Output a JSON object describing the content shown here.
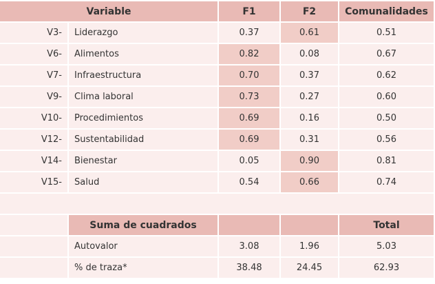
{
  "table": {
    "header": [
      "Variable",
      "F1",
      "F2",
      "Comunalidades"
    ],
    "rows": [
      [
        "V3-",
        "Liderazgo",
        "0.37",
        "0.61",
        "0.51"
      ],
      [
        "V6-",
        "Alimentos",
        "0.82",
        "0.08",
        "0.67"
      ],
      [
        "V7-",
        "Infraestructura",
        "0.70",
        "0.37",
        "0.62"
      ],
      [
        "V9-",
        "Clima laboral",
        "0.73",
        "0.27",
        "0.60"
      ],
      [
        "V10-",
        "Procedimientos",
        "0.69",
        "0.16",
        "0.50"
      ],
      [
        "V12-",
        "Sustentabilidad",
        "0.69",
        "0.31",
        "0.56"
      ],
      [
        "V14-",
        "Bienestar",
        "0.05",
        "0.90",
        "0.81"
      ],
      [
        "V15-",
        "Salud",
        "0.54",
        "0.66",
        "0.74"
      ]
    ],
    "highlighted_cells": [
      [
        0,
        3
      ],
      [
        1,
        2
      ],
      [
        2,
        2
      ],
      [
        3,
        2
      ],
      [
        4,
        2
      ],
      [
        5,
        2
      ],
      [
        6,
        3
      ],
      [
        7,
        3
      ]
    ],
    "summary_header": [
      "Suma de cuadrados",
      "Total"
    ],
    "summary_rows": [
      [
        "Autovalor",
        "3.08",
        "1.96",
        "5.03"
      ],
      [
        "% de traza*",
        "38.48",
        "24.45",
        "62.93"
      ]
    ]
  }
}
